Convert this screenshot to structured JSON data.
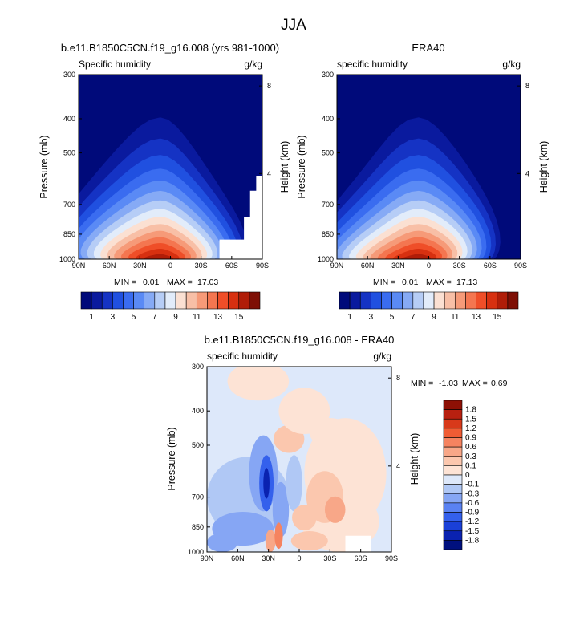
{
  "figure": {
    "title": "JJA"
  },
  "chart_data": [
    {
      "type": "heatmap",
      "id": "model",
      "title": "b.e11.B1850C5CN.f19_g16.008 (yrs 981-1000)",
      "subtitle_left": "Specific humidity",
      "subtitle_right": "g/kg",
      "ylabel": "Pressure (mb)",
      "ylabel_right": "Height (km)",
      "x_ticks": [
        "90N",
        "60N",
        "30N",
        "0",
        "30S",
        "60S",
        "90S"
      ],
      "y_ticks": [
        "300",
        "400",
        "500",
        "700",
        "850",
        "1000"
      ],
      "y_values": [
        300,
        400,
        500,
        700,
        850,
        1000
      ],
      "y_right_ticks": [
        "8",
        "4"
      ],
      "y_right_values": [
        8,
        4
      ],
      "xlim": [
        90,
        -90
      ],
      "ylim": [
        1000,
        300
      ],
      "peak_lat": 10,
      "stats_label_min": "MIN =",
      "stats_min": "0.01",
      "stats_label_max": "MAX =",
      "stats_max": "17.03",
      "colorbar_labels": [
        "1",
        "3",
        "5",
        "7",
        "9",
        "11",
        "13",
        "15"
      ]
    },
    {
      "type": "heatmap",
      "id": "era40",
      "title": "ERA40",
      "subtitle_left": "specific humidity",
      "subtitle_right": "g/kg",
      "ylabel": "Pressure (mb)",
      "ylabel_right": "Height (km)",
      "x_ticks": [
        "90N",
        "60N",
        "30N",
        "0",
        "30S",
        "60S",
        "90S"
      ],
      "y_ticks": [
        "300",
        "400",
        "500",
        "700",
        "850",
        "1000"
      ],
      "y_values": [
        300,
        400,
        500,
        700,
        850,
        1000
      ],
      "y_right_ticks": [
        "8",
        "4"
      ],
      "y_right_values": [
        8,
        4
      ],
      "xlim": [
        90,
        -90
      ],
      "ylim": [
        1000,
        300
      ],
      "peak_lat": 10,
      "stats_label_min": "MIN =",
      "stats_min": "0.01",
      "stats_label_max": "MAX =",
      "stats_max": "17.13",
      "colorbar_labels": [
        "1",
        "3",
        "5",
        "7",
        "9",
        "11",
        "13",
        "15"
      ]
    },
    {
      "type": "heatmap",
      "id": "diff",
      "title": "b.e11.B1850C5CN.f19_g16.008 - ERA40",
      "subtitle_left": "specific humidity",
      "subtitle_right": "g/kg",
      "ylabel": "Pressure (mb)",
      "ylabel_right": "Height (km)",
      "x_ticks": [
        "90N",
        "60N",
        "30N",
        "0",
        "30S",
        "60S",
        "90S"
      ],
      "y_ticks": [
        "300",
        "400",
        "500",
        "700",
        "850",
        "1000"
      ],
      "y_values": [
        300,
        400,
        500,
        700,
        850,
        1000
      ],
      "y_right_ticks": [
        "8",
        "4"
      ],
      "y_right_values": [
        8,
        4
      ],
      "xlim": [
        90,
        -90
      ],
      "ylim": [
        1000,
        300
      ],
      "stats_label_min": "MIN =",
      "stats_min": "-1.03",
      "stats_label_max": "MAX =",
      "stats_max": "0.69",
      "colorbar_labels": [
        "1.8",
        "1.5",
        "1.2",
        "0.9",
        "0.6",
        "0.3",
        "0.1",
        "0",
        "-0.1",
        "-0.3",
        "-0.6",
        "-0.9",
        "-1.2",
        "-1.5",
        "-1.8"
      ]
    }
  ],
  "colors": {
    "humidity_scale": [
      "#000a7a",
      "#0a1a9e",
      "#1533c4",
      "#2050e0",
      "#3a6cf0",
      "#5a8af5",
      "#86aaf5",
      "#b6cdf6",
      "#e2ecfa",
      "#fbe0d2",
      "#f8bfa6",
      "#f69a78",
      "#f47650",
      "#ef4e28",
      "#d73010",
      "#b01d08",
      "#7e0f05"
    ],
    "diff_scale": [
      "#00107e",
      "#0a22b0",
      "#1a40d8",
      "#3460ec",
      "#5a82f2",
      "#86a6f4",
      "#b0c8f5",
      "#dde8fa",
      "#fde3d5",
      "#fbc7ae",
      "#f8a788",
      "#f58360",
      "#f05c34",
      "#d8391a",
      "#b82010",
      "#8e1005"
    ]
  }
}
